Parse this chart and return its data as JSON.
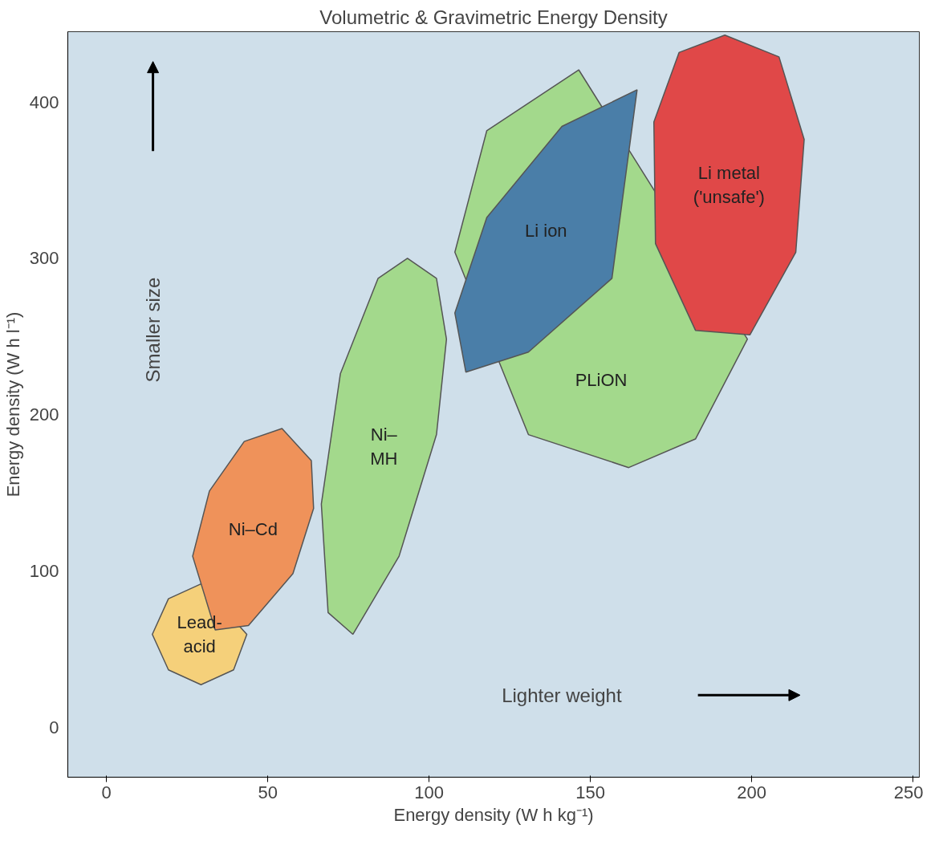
{
  "chart_data": {
    "type": "area",
    "title": "Volumetric & Gravimetric Energy Density",
    "xlabel": "Energy density (W h kg⁻¹)",
    "ylabel": "Energy density (W h l⁻¹)",
    "xlim": [
      -12,
      252
    ],
    "ylim": [
      -32,
      445
    ],
    "xticks": [
      0,
      50,
      100,
      150,
      200,
      250
    ],
    "yticks": [
      0,
      100,
      200,
      300,
      400
    ],
    "grid": false,
    "legend": false,
    "series": [
      {
        "name": "Lead-\nacid",
        "color": "#f5d07a",
        "x": [
          43.5,
          29.3,
          19.2,
          14.2,
          19.2,
          29.3,
          39.4
        ],
        "values": [
          59.4,
          91.7,
          82.2,
          59.4,
          36.7,
          27.2,
          36.7
        ]
      },
      {
        "name": "Ni–Cd",
        "color": "#ef925a",
        "x": [
          54.4,
          63.5,
          64.2,
          57.8,
          44.0,
          33.7,
          26.7,
          31.9,
          42.7
        ],
        "values": [
          191.1,
          170.6,
          140,
          98.3,
          65,
          62.2,
          109.4,
          151.1,
          182.8
        ]
      },
      {
        "name": "Ni–\nMH",
        "color": "#a3d98c",
        "x": [
          93.3,
          102.3,
          105.4,
          102.3,
          90.7,
          76.4,
          68.7,
          66.6,
          72.5,
          84.2
        ],
        "values": [
          300,
          287.2,
          248.3,
          187.2,
          109.4,
          59.4,
          73.3,
          142.8,
          226.1,
          287.2
        ]
      },
      {
        "name": "PLiON",
        "color": "#a3d98c",
        "x": [
          146.4,
          198.7,
          182.6,
          161.9,
          130.8,
          108.0,
          117.9
        ],
        "values": [
          420.6,
          248.3,
          184.4,
          166.1,
          187.2,
          303.9,
          381.7
        ]
      },
      {
        "name": "Li ion",
        "color": "#4a7ea8",
        "x": [
          164.5,
          156.7,
          130.8,
          111.4,
          108.0,
          117.9,
          141.2
        ],
        "values": [
          407.8,
          287.2,
          240,
          227.2,
          265,
          326.1,
          384.4
        ]
      },
      {
        "name": "Li metal\n('unsafe')",
        "color": "#e04848",
        "x": [
          191.7,
          208.5,
          216.3,
          213.7,
          199.5,
          182.6,
          170.2,
          169.7,
          177.5
        ],
        "values": [
          442.8,
          428.9,
          376.1,
          303.9,
          251.1,
          253.9,
          309.4,
          387.2,
          431.7
        ]
      }
    ],
    "annotations": [
      "Smaller size",
      "Lighter weight"
    ]
  }
}
